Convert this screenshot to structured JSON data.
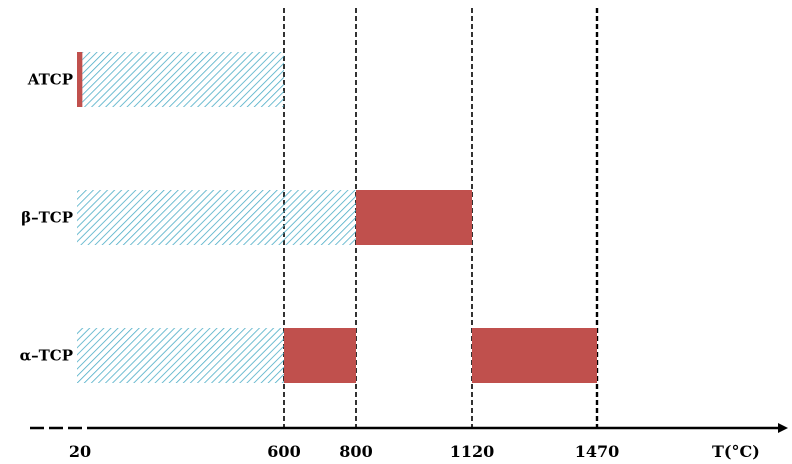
{
  "chart_data": {
    "type": "bar",
    "orientation": "horizontal",
    "xlabel": "T(°C)",
    "x_ticks": [
      20,
      600,
      800,
      1120,
      1470
    ],
    "dashed_reference_lines": [
      600,
      800,
      1120,
      1470
    ],
    "rows": [
      "ATCP",
      "β–TCP",
      "α–TCP"
    ],
    "segments": [
      {
        "row": 0,
        "start": 20,
        "end": 35,
        "style": "solid"
      },
      {
        "row": 0,
        "start": 35,
        "end": 600,
        "style": "hatched"
      },
      {
        "row": 1,
        "start": 20,
        "end": 800,
        "style": "hatched"
      },
      {
        "row": 1,
        "start": 800,
        "end": 1120,
        "style": "solid"
      },
      {
        "row": 2,
        "start": 20,
        "end": 600,
        "style": "hatched"
      },
      {
        "row": 2,
        "start": 600,
        "end": 800,
        "style": "solid"
      },
      {
        "row": 2,
        "start": 1120,
        "end": 1470,
        "style": "solid"
      }
    ],
    "colors": {
      "solid": "#c0504d",
      "hatch": "#4bacc6",
      "axis": "#000000"
    },
    "grid": false,
    "legend": "none"
  }
}
